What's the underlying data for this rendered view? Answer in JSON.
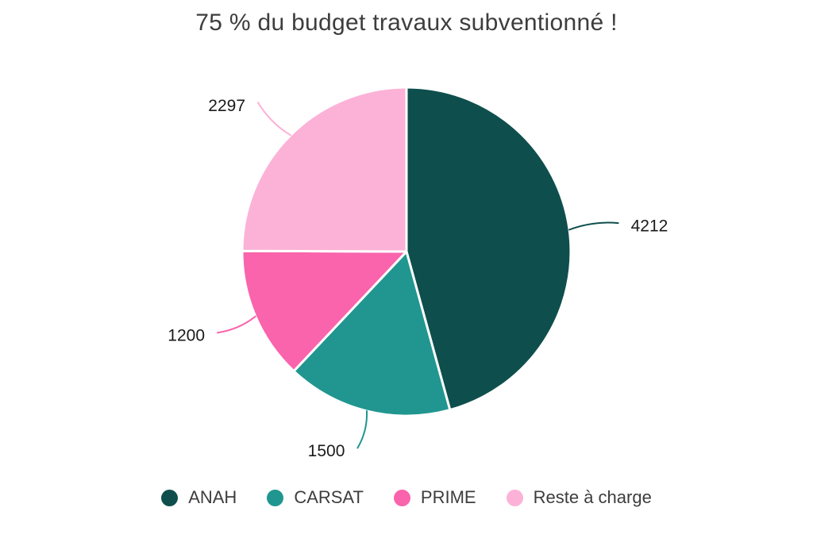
{
  "chart_data": {
    "type": "pie",
    "title": "75 % du budget travaux subventionné !",
    "legend_position": "bottom",
    "start_angle_deg": -90,
    "direction": "clockwise",
    "total": 9209,
    "series": [
      {
        "name": "ANAH",
        "value": 4212,
        "label": "4212",
        "color": "#0E4F4D"
      },
      {
        "name": "CARSAT",
        "value": 1500,
        "label": "1500",
        "color": "#219690"
      },
      {
        "name": "PRIME",
        "value": 1200,
        "label": "1200",
        "color": "#F964AC"
      },
      {
        "name": "Reste à charge",
        "value": 2297,
        "label": "2297",
        "color": "#FCB2D7"
      }
    ]
  },
  "style": {
    "title_color": "#3d3d3d",
    "label_color": "#1a1a1a",
    "legend_text_color": "#3d3d3d",
    "separator_color": "#ffffff",
    "background": "#ffffff"
  }
}
